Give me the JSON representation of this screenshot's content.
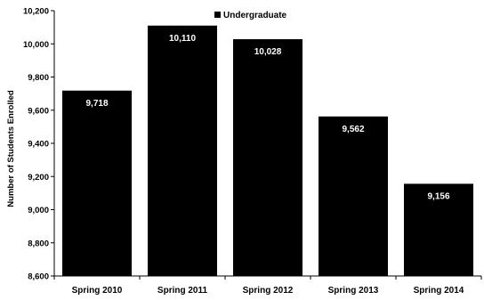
{
  "chart_data": {
    "type": "bar",
    "categories": [
      "Spring 2010",
      "Spring 2011",
      "Spring 2012",
      "Spring 2013",
      "Spring 2014"
    ],
    "series": [
      {
        "name": "Undergraduate",
        "values": [
          9718,
          10110,
          10028,
          9562,
          9156
        ],
        "color": "#000000"
      }
    ],
    "data_labels": [
      "9,718",
      "10,110",
      "10,028",
      "9,562",
      "9,156"
    ],
    "ylabel": "Number of Students Enrolled",
    "ylim": [
      8600,
      10200
    ],
    "yticks": [
      8600,
      8800,
      9000,
      9200,
      9400,
      9600,
      9800,
      10000,
      10200
    ],
    "ytick_labels": [
      "8,600",
      "8,800",
      "9,000",
      "9,200",
      "9,400",
      "9,600",
      "9,800",
      "10,000",
      "10,200"
    ],
    "grid": false,
    "legend_position": "top-center"
  }
}
